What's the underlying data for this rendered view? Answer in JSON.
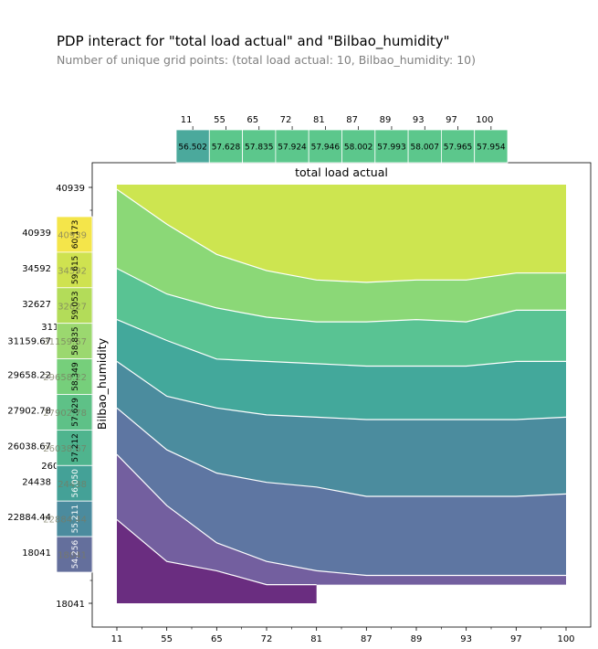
{
  "title": "PDP interact for \"total load actual\" and \"Bilbao_humidity\"",
  "subtitle": "Number of unique grid points: (total load actual: 10, Bilbao_humidity: 10)",
  "chart_data": {
    "type": "heatmap",
    "title": "total load actual",
    "xlabel": "",
    "ylabel": "Bilbao_humidity",
    "x_ticks": [
      "11",
      "55",
      "65",
      "72",
      "81",
      "87",
      "89",
      "93",
      "97",
      "100"
    ],
    "y_ticks_top_to_bottom": [
      "40939",
      "34592",
      "32627",
      "31159.67",
      "29658.22",
      "27902.78",
      "26038.67",
      "24438",
      "22884.44",
      "18041"
    ],
    "top_strip": {
      "labels": [
        "11",
        "55",
        "65",
        "72",
        "81",
        "87",
        "89",
        "93",
        "97",
        "100"
      ],
      "values": [
        56.502,
        57.628,
        57.835,
        57.924,
        57.946,
        58.002,
        57.993,
        58.007,
        57.965,
        57.954
      ]
    },
    "left_strip": {
      "labels": [
        "40939",
        "34592",
        "32627",
        "31159.67",
        "29658.22",
        "27902.78",
        "26038.67",
        "24438",
        "22884.44",
        "18041"
      ],
      "values": [
        60.173,
        59.615,
        59.053,
        58.835,
        58.349,
        57.629,
        57.212,
        56.05,
        55.211,
        54.256
      ]
    },
    "contour_levels": [
      52.0,
      53.5,
      55.0,
      56.0,
      57.0,
      58.0,
      59.0,
      60.0,
      61.0
    ],
    "level_colors": [
      "#6a2d80",
      "#735f9f",
      "#5e76a2",
      "#4b8c9e",
      "#43a89b",
      "#59c393",
      "#8bd877",
      "#cde550",
      "#fde74c"
    ],
    "contour_lines": [
      [
        [
          11,
          53.8
        ],
        [
          55,
          52.9
        ],
        [
          65,
          52.7
        ],
        [
          72,
          52.4
        ],
        [
          81,
          52.4
        ]
      ],
      [
        [
          11,
          55.2
        ],
        [
          55,
          54.1
        ],
        [
          65,
          53.3
        ],
        [
          72,
          52.9
        ],
        [
          81,
          52.7
        ],
        [
          87,
          52.6
        ],
        [
          89,
          52.6
        ],
        [
          93,
          52.6
        ],
        [
          97,
          52.6
        ],
        [
          100,
          52.6
        ]
      ],
      [
        [
          11,
          56.2
        ],
        [
          55,
          55.3
        ],
        [
          65,
          54.8
        ],
        [
          72,
          54.6
        ],
        [
          81,
          54.5
        ],
        [
          87,
          54.3
        ],
        [
          89,
          54.3
        ],
        [
          93,
          54.3
        ],
        [
          97,
          54.3
        ],
        [
          100,
          54.35
        ]
      ],
      [
        [
          11,
          57.2
        ],
        [
          55,
          56.45
        ],
        [
          65,
          56.2
        ],
        [
          72,
          56.05
        ],
        [
          81,
          56.0
        ],
        [
          87,
          55.95
        ],
        [
          89,
          55.95
        ],
        [
          93,
          55.95
        ],
        [
          97,
          55.95
        ],
        [
          100,
          56.0
        ]
      ],
      [
        [
          11,
          58.1
        ],
        [
          55,
          57.65
        ],
        [
          65,
          57.25
        ],
        [
          72,
          57.2
        ],
        [
          81,
          57.15
        ],
        [
          87,
          57.1
        ],
        [
          89,
          57.1
        ],
        [
          93,
          57.1
        ],
        [
          97,
          57.2
        ],
        [
          100,
          57.2
        ]
      ],
      [
        [
          11,
          59.2
        ],
        [
          55,
          58.65
        ],
        [
          65,
          58.35
        ],
        [
          72,
          58.15
        ],
        [
          81,
          58.05
        ],
        [
          87,
          58.05
        ],
        [
          89,
          58.1
        ],
        [
          93,
          58.05
        ],
        [
          97,
          58.3
        ],
        [
          100,
          58.3
        ]
      ],
      [
        [
          11,
          60.9
        ],
        [
          55,
          60.15
        ],
        [
          65,
          59.5
        ],
        [
          72,
          59.15
        ],
        [
          81,
          58.95
        ],
        [
          87,
          58.9
        ],
        [
          89,
          58.95
        ],
        [
          93,
          58.95
        ],
        [
          97,
          59.1
        ],
        [
          100,
          59.1
        ]
      ],
      [
        [
          11,
          61.0
        ],
        [
          55,
          61.0
        ],
        [
          65,
          61.0
        ],
        [
          72,
          61.0
        ],
        [
          81,
          61.0
        ],
        [
          87,
          61.0
        ],
        [
          89,
          61.0
        ],
        [
          93,
          61.0
        ],
        [
          97,
          61.0
        ],
        [
          100,
          61.0
        ]
      ]
    ]
  }
}
